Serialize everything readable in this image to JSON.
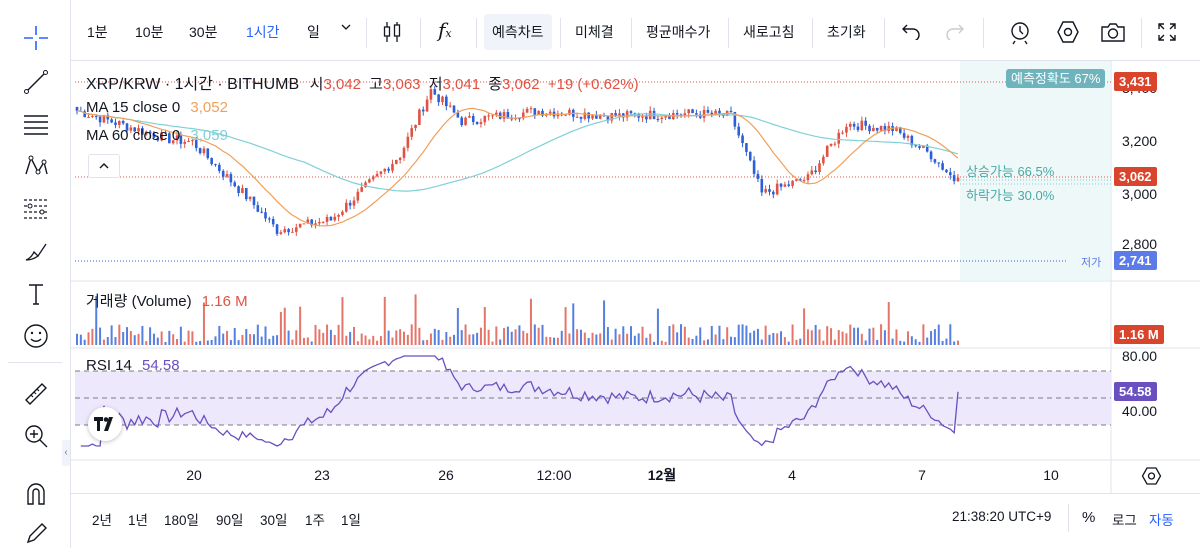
{
  "toolbar": {
    "timeframes": [
      "1분",
      "10분",
      "30분",
      "1시간",
      "일"
    ],
    "active_timeframe": "1시간",
    "buttons": [
      "예측차트",
      "미체결",
      "평균매수가",
      "새로고침",
      "초기화"
    ]
  },
  "legend": {
    "symbol": "XRP/KRW · 1시간 · BITHUMB",
    "o_label": "시",
    "o": "3,042",
    "h_label": "고",
    "h": "3,063",
    "l_label": "저",
    "l": "3,041",
    "c_label": "종",
    "c": "3,062",
    "change": "+19 (+0.62%)",
    "ma15_label": "MA 15 close 0",
    "ma15": "3,052",
    "ma60_label": "MA 60 close 0",
    "ma60": "3,059",
    "volume_label": "거래량 (Volume)",
    "volume": "1.16 M",
    "rsi_label": "RSI 14",
    "rsi": "54.58"
  },
  "prediction": {
    "accuracy": "예측정확도 67%",
    "up": "상승가능 66.5%",
    "down": "하락가능 30.0%"
  },
  "price_axis": {
    "ticks": [
      "3,400",
      "3,200",
      "3,000",
      "2,800"
    ],
    "high_tag": "3,431",
    "last_tag": "3,062",
    "low_label": "저가",
    "low_tag": "2,741",
    "volume_tag": "1.16 M",
    "rsi_ticks": [
      "80.00",
      "40.00"
    ],
    "rsi_tag": "54.58"
  },
  "time_axis": {
    "ticks": [
      "20",
      "23",
      "26",
      "12:00",
      "12월",
      "4",
      "7",
      "10"
    ]
  },
  "bottom": {
    "ranges": [
      "2년",
      "1년",
      "180일",
      "90일",
      "30일",
      "1주",
      "1일"
    ],
    "clock": "21:38:20 UTC+9",
    "percent": "%",
    "log": "로그",
    "auto": "자동"
  },
  "colors": {
    "up": "#e05343",
    "down": "#2b5fd9",
    "ma15": "#f0a05a",
    "ma60": "#7fd0d6",
    "rsi": "#6a4fc0",
    "last_tag": "#d9442c",
    "low_tag": "#5b7be8",
    "accuracy_tag": "#6fb4bd",
    "active_tf": "#2962ff"
  },
  "chart_data": {
    "type": "candlestick",
    "interval": "1h",
    "x_ticks": [
      "20",
      "23",
      "26",
      "12:00",
      "12월",
      "4",
      "7",
      "10"
    ],
    "ylim": [
      2740,
      3440
    ],
    "price_keypoints": [
      {
        "x": "start",
        "close": 3320
      },
      {
        "x": "~19",
        "close": 3210
      },
      {
        "x": "~20",
        "close": 3200
      },
      {
        "x": "~21",
        "close": 2990
      },
      {
        "x": "~22",
        "close": 2860
      },
      {
        "x": "~23",
        "close": 2900
      },
      {
        "x": "~24",
        "close": 3150
      },
      {
        "x": "~25",
        "close": 3400
      },
      {
        "x": "~26",
        "close": 3280
      },
      {
        "x": "~27",
        "close": 3320
      },
      {
        "x": "12:00",
        "close": 3300
      },
      {
        "x": "~30",
        "close": 3310
      },
      {
        "x": "12월",
        "close": 3300
      },
      {
        "x": "~2",
        "close": 3000
      },
      {
        "x": "~3",
        "close": 3060
      },
      {
        "x": "~3.5",
        "close": 3270
      },
      {
        "x": "4",
        "close": 3250
      },
      {
        "x": "~5",
        "close": 3150
      },
      {
        "x": "~6",
        "close": 3040
      },
      {
        "x": "7",
        "close": 3062
      }
    ],
    "high_marker": 3431,
    "low_marker": 2741,
    "last": 3062,
    "ma15_last": 3052,
    "ma60_last": 3059,
    "volume_last": "1.16 M",
    "rsi_last": 54.58,
    "rsi_levels": [
      70,
      50,
      30
    ]
  }
}
